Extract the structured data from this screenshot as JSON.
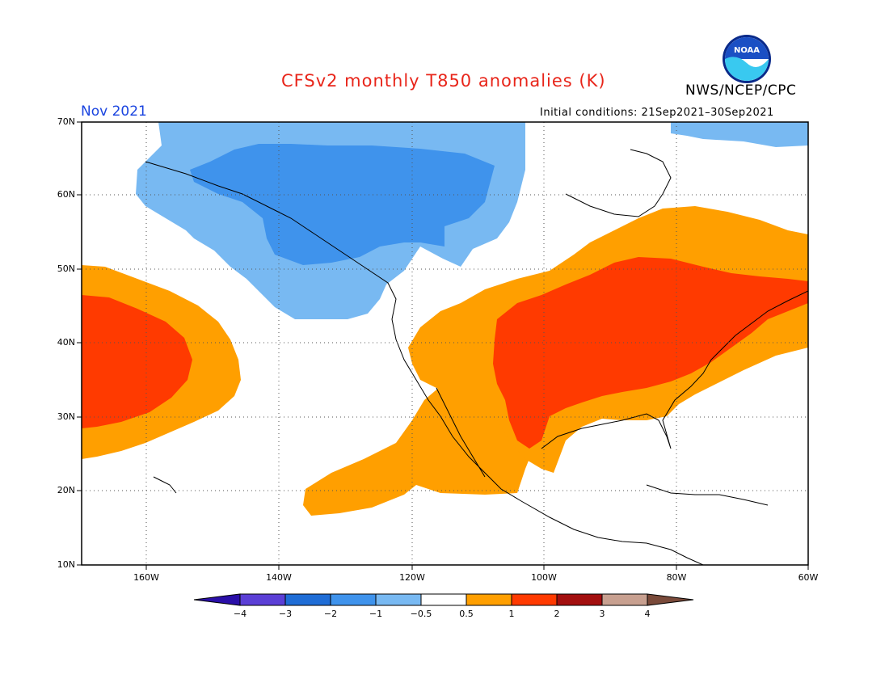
{
  "header": {
    "title": "CFSv2 monthly T850 anomalies (K)",
    "agency": "NWS/NCEP/CPC",
    "logo_text": "NOAA",
    "month": "Nov 2021",
    "initial_conditions": "Initial conditions: 21Sep2021–30Sep2021"
  },
  "map": {
    "variable": "850 hPa temperature anomaly",
    "units": "K",
    "lat_range": [
      10,
      70
    ],
    "lon_range": [
      -172,
      -60
    ],
    "lat_labels": [
      "70N",
      "60N",
      "50N",
      "40N",
      "30N",
      "20N",
      "10N"
    ],
    "lon_labels": [
      "160W",
      "140W",
      "120W",
      "100W",
      "80W",
      "60W"
    ],
    "gridlines": "dotted",
    "features": [
      {
        "name": "central-eastern-us-warm-core",
        "category": "1 to 2",
        "color": "#ff3a00"
      },
      {
        "name": "north-pacific-warm-core",
        "category": "1 to 2",
        "color": "#ff3a00"
      },
      {
        "name": "eastern-north-america-warm",
        "category": "0.5 to 1",
        "color": "#ff9f00"
      },
      {
        "name": "mexico-subtropical-pacific-warm",
        "category": "0.5 to 1",
        "color": "#ff9f00"
      },
      {
        "name": "alaska-nw-canada-cool",
        "category": "-1 to -0.5",
        "color": "#78b9f2"
      },
      {
        "name": "alaska-nw-canada-cool-core",
        "category": "-2 to -1",
        "color": "#3f93ec"
      },
      {
        "name": "arctic-canada-cool",
        "category": "-1 to -0.5",
        "color": "#78b9f2"
      }
    ]
  },
  "colorbar": {
    "labels": [
      "−4",
      "−3",
      "−2",
      "−1",
      "−0.5",
      "0.5",
      "1",
      "2",
      "3",
      "4"
    ],
    "colors": [
      "#2a0fa8",
      "#5b3fd6",
      "#1f6dd6",
      "#3f93ec",
      "#78b9f2",
      "#ffffff",
      "#ff9f00",
      "#ff3a00",
      "#a30f0f",
      "#c8a090",
      "#7a4a3a"
    ]
  }
}
